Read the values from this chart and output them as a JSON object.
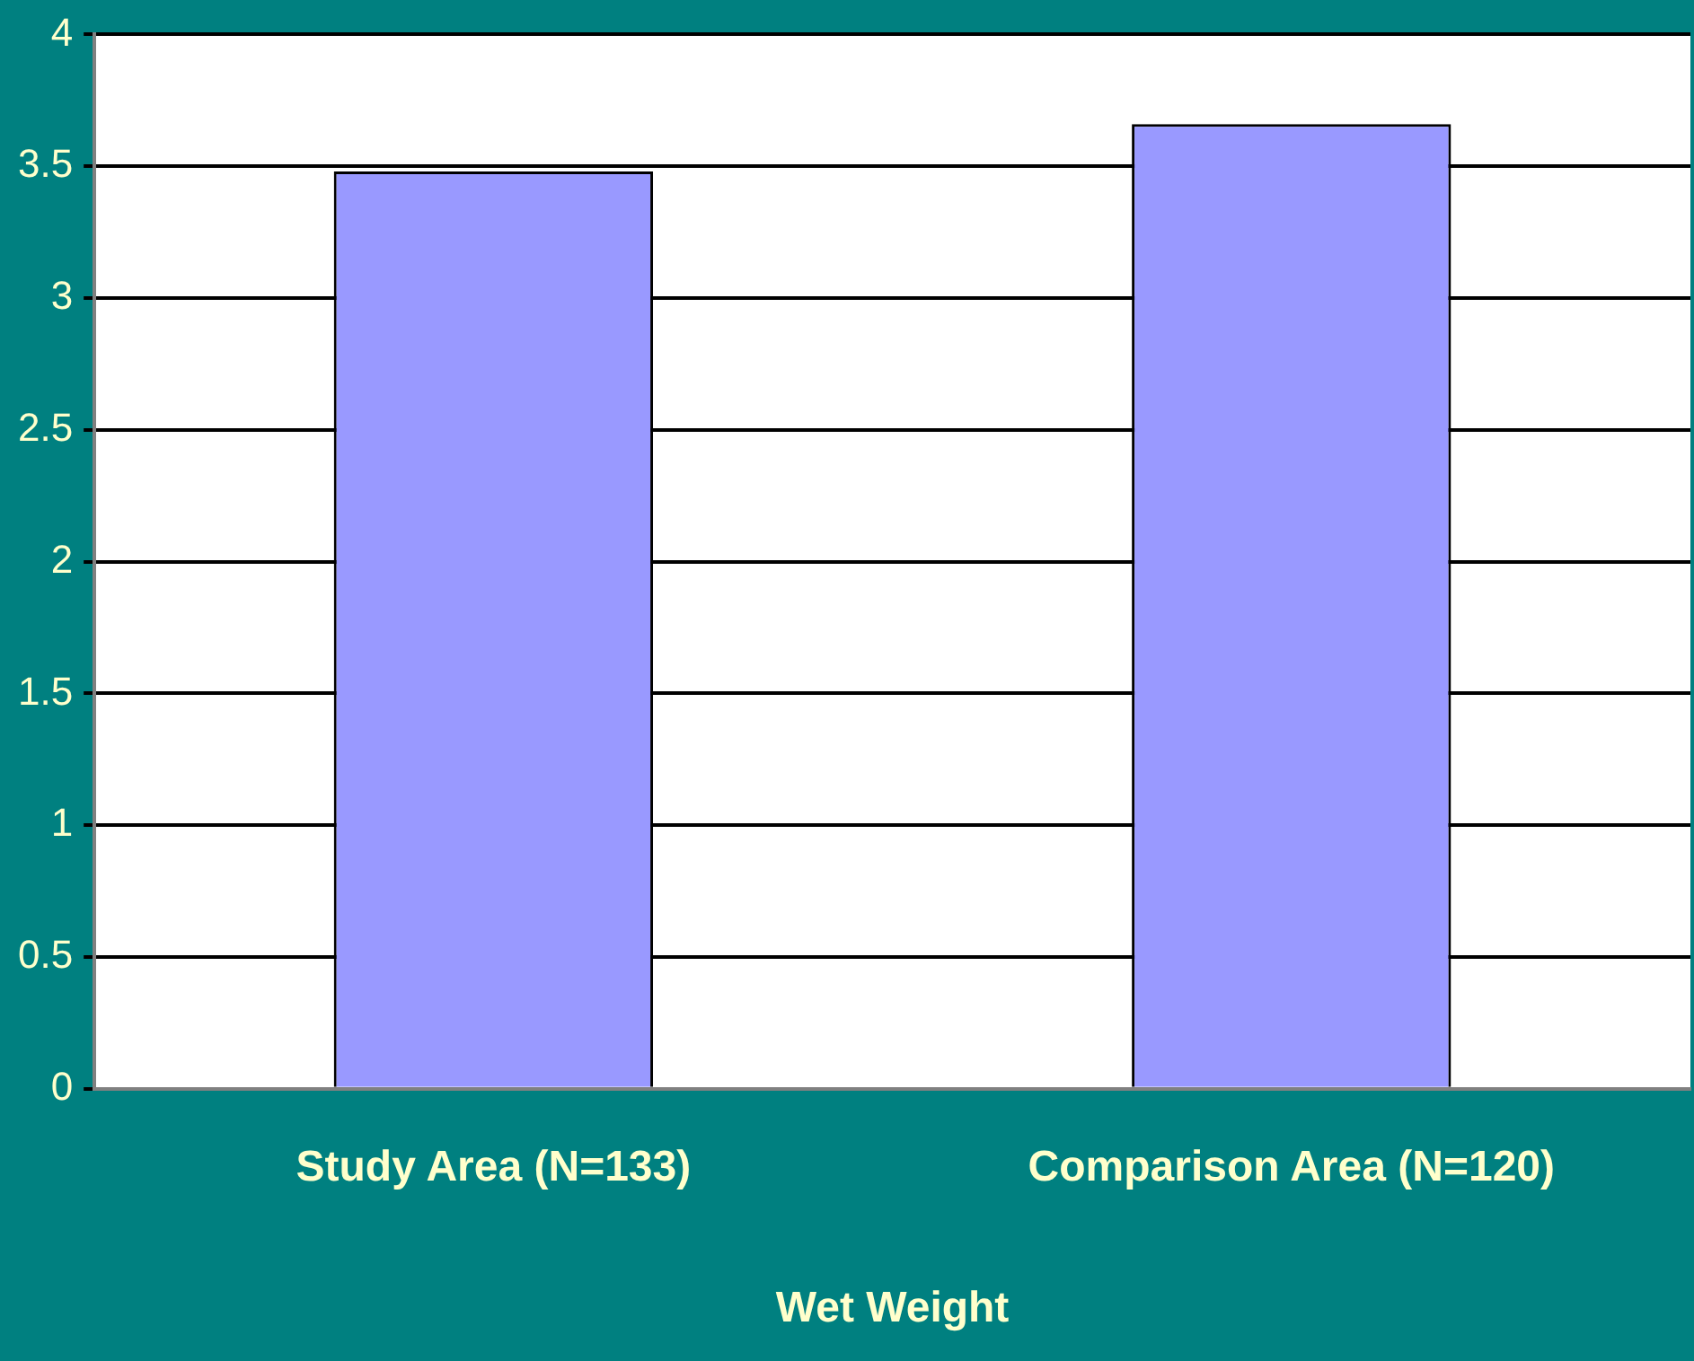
{
  "chart_data": {
    "type": "bar",
    "xlabel": "Wet Weight",
    "categories": [
      "Study Area (N=133)",
      "Comparison Area (N=120)"
    ],
    "values": [
      3.48,
      3.66
    ],
    "color": "#9999ff",
    "ylim": [
      0,
      4
    ],
    "yticks": [
      0,
      0.5,
      1,
      1.5,
      2,
      2.5,
      3,
      3.5,
      4
    ],
    "grid": "y",
    "legend": false
  }
}
